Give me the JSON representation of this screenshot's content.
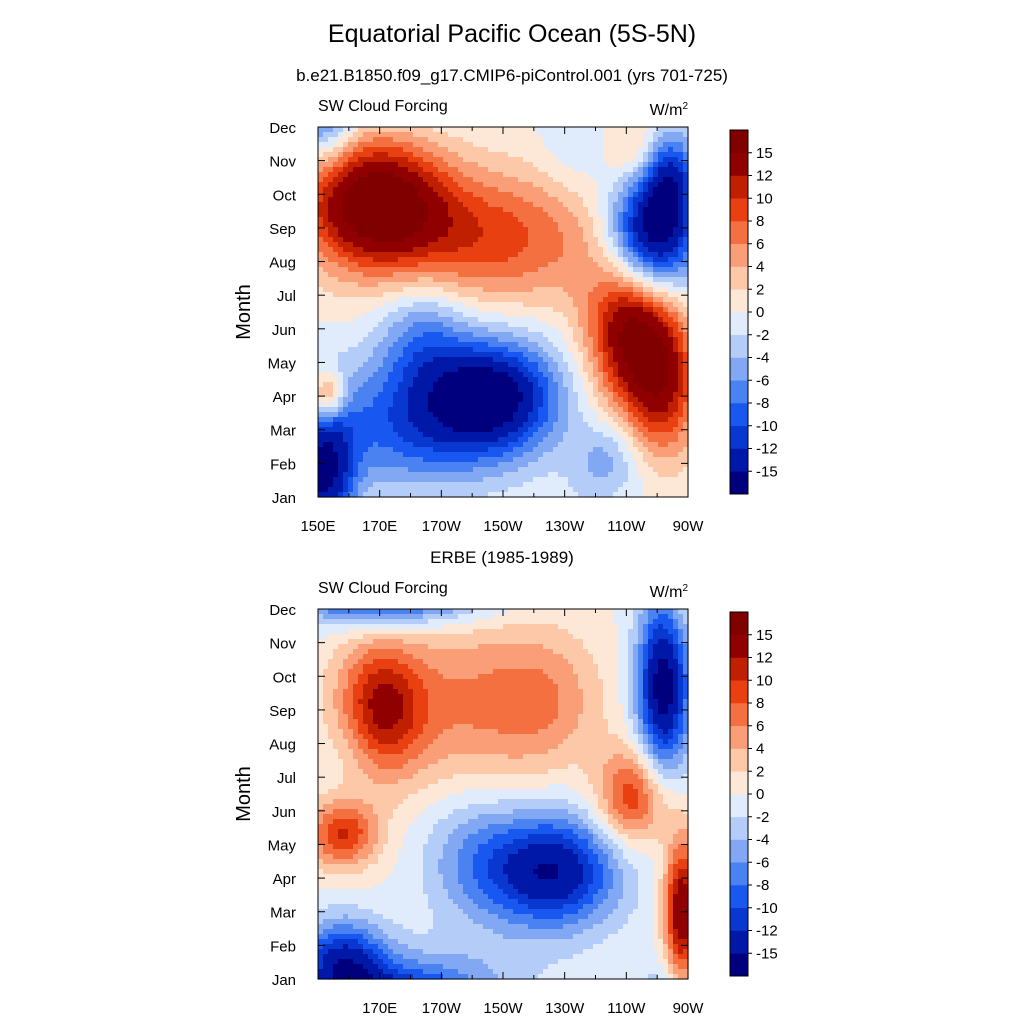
{
  "title": "Equatorial Pacific Ocean (5S-5N)",
  "chart_data": [
    {
      "type": "heatmap",
      "title": "b.e21.B1850.f09_g17.CMIP6-piControl.001 (yrs 701-725)",
      "left_string": "SW Cloud Forcing",
      "units_base": "W/m",
      "units_exp": "2",
      "ylabel": "Month",
      "xlim": [
        150,
        270
      ],
      "x_ticks": [
        150,
        170,
        190,
        210,
        230,
        250,
        270
      ],
      "x_tick_labels": [
        "150E",
        "170E",
        "170W",
        "150W",
        "130W",
        "110W",
        "90W"
      ],
      "y_tick_labels": [
        "Jan",
        "Feb",
        "Mar",
        "Apr",
        "May",
        "Jun",
        "Jul",
        "Aug",
        "Sep",
        "Oct",
        "Nov",
        "Dec"
      ],
      "anomalies": [
        {
          "x": 168,
          "y": 8.8,
          "sx": 16,
          "sy": 1.3,
          "a": 17
        },
        {
          "x": 205,
          "y": 7.7,
          "sx": 28,
          "sy": 1.4,
          "a": 9
        },
        {
          "x": 252,
          "y": 5.0,
          "sx": 10,
          "sy": 1.6,
          "a": 16
        },
        {
          "x": 262,
          "y": 3.2,
          "sx": 8,
          "sy": 1.5,
          "a": 10
        },
        {
          "x": 258,
          "y": 7.7,
          "sx": 10,
          "sy": 1.3,
          "a": -19
        },
        {
          "x": 264,
          "y": 9.5,
          "sx": 6,
          "sy": 1.0,
          "a": -10
        },
        {
          "x": 253,
          "y": 10.3,
          "sx": 6,
          "sy": 0.7,
          "a": 4
        },
        {
          "x": 207,
          "y": 3.0,
          "sx": 15,
          "sy": 1.2,
          "a": -16
        },
        {
          "x": 180,
          "y": 2.2,
          "sx": 20,
          "sy": 1.4,
          "a": -9
        },
        {
          "x": 152,
          "y": 0.6,
          "sx": 7,
          "sy": 1.5,
          "a": -15
        },
        {
          "x": 184,
          "y": 4.9,
          "sx": 10,
          "sy": 1.2,
          "a": -6
        },
        {
          "x": 153,
          "y": 3.0,
          "sx": 4,
          "sy": 0.5,
          "a": 10
        },
        {
          "x": 244,
          "y": 1.1,
          "sx": 8,
          "sy": 0.8,
          "a": -5
        },
        {
          "x": 232,
          "y": 10.4,
          "sx": 7,
          "sy": 1.2,
          "a": -2
        }
      ],
      "contour_levels": [
        -15,
        -12,
        -10,
        -8,
        -6,
        -4,
        -2,
        0,
        2,
        4,
        6,
        8,
        10,
        12,
        15
      ],
      "colorbar_labels": [
        "-15",
        "-12",
        "-10",
        "-8",
        "-6",
        "-4",
        "-2",
        "0",
        "2",
        "4",
        "6",
        "8",
        "10",
        "12",
        "15"
      ]
    },
    {
      "type": "heatmap",
      "title": "ERBE (1985-1989)",
      "left_string": "SW Cloud Forcing",
      "units_base": "W/m",
      "units_exp": "2",
      "ylabel": "Month",
      "xlim": [
        150,
        270
      ],
      "x_ticks": [
        170,
        190,
        210,
        230,
        250,
        270
      ],
      "x_tick_labels": [
        "170E",
        "170W",
        "150W",
        "130W",
        "110W",
        "90W"
      ],
      "y_tick_labels": [
        "Jan",
        "Feb",
        "Mar",
        "Apr",
        "May",
        "Jun",
        "Jul",
        "Aug",
        "Sep",
        "Oct",
        "Nov",
        "Dec"
      ],
      "anomalies": [
        {
          "x": 170,
          "y": 8.0,
          "sx": 10,
          "sy": 1.4,
          "a": 12
        },
        {
          "x": 200,
          "y": 8.2,
          "sx": 20,
          "sy": 1.8,
          "a": 6
        },
        {
          "x": 225,
          "y": 8.3,
          "sx": 12,
          "sy": 1.4,
          "a": 4
        },
        {
          "x": 158,
          "y": 4.3,
          "sx": 8,
          "sy": 0.7,
          "a": 10
        },
        {
          "x": 252,
          "y": 5.4,
          "sx": 8,
          "sy": 1.0,
          "a": 10
        },
        {
          "x": 268,
          "y": 2.0,
          "sx": 4,
          "sy": 1.5,
          "a": 15
        },
        {
          "x": 226,
          "y": 3.2,
          "sx": 15,
          "sy": 1.2,
          "a": -15
        },
        {
          "x": 200,
          "y": 3.6,
          "sx": 12,
          "sy": 1.4,
          "a": -5
        },
        {
          "x": 158,
          "y": 0.5,
          "sx": 10,
          "sy": 0.9,
          "a": -12
        },
        {
          "x": 185,
          "y": 0.0,
          "sx": 25,
          "sy": 0.8,
          "a": -5
        },
        {
          "x": 262,
          "y": 8.7,
          "sx": 6,
          "sy": 1.8,
          "a": -17
        },
        {
          "x": 175,
          "y": 11.4,
          "sx": 18,
          "sy": 0.6,
          "a": -9
        },
        {
          "x": 162,
          "y": 7.0,
          "sx": 8,
          "sy": 1.0,
          "a": -2
        }
      ],
      "contour_levels": [
        -15,
        -12,
        -10,
        -8,
        -6,
        -4,
        -2,
        0,
        2,
        4,
        6,
        8,
        10,
        12,
        15
      ],
      "colorbar_labels": [
        "-15",
        "-12",
        "-10",
        "-8",
        "-6",
        "-4",
        "-2",
        "0",
        "2",
        "4",
        "6",
        "8",
        "10",
        "12",
        "15"
      ]
    }
  ],
  "colors": {
    "fill": [
      "#00007f",
      "#0018a8",
      "#0838d0",
      "#1858f0",
      "#4a82f2",
      "#82a8f4",
      "#b4ccf8",
      "#e0ecfc",
      "#fde8d8",
      "#fcc8a8",
      "#fa9e78",
      "#f57040",
      "#e84010",
      "#c02000",
      "#900000",
      "#800000"
    ]
  }
}
